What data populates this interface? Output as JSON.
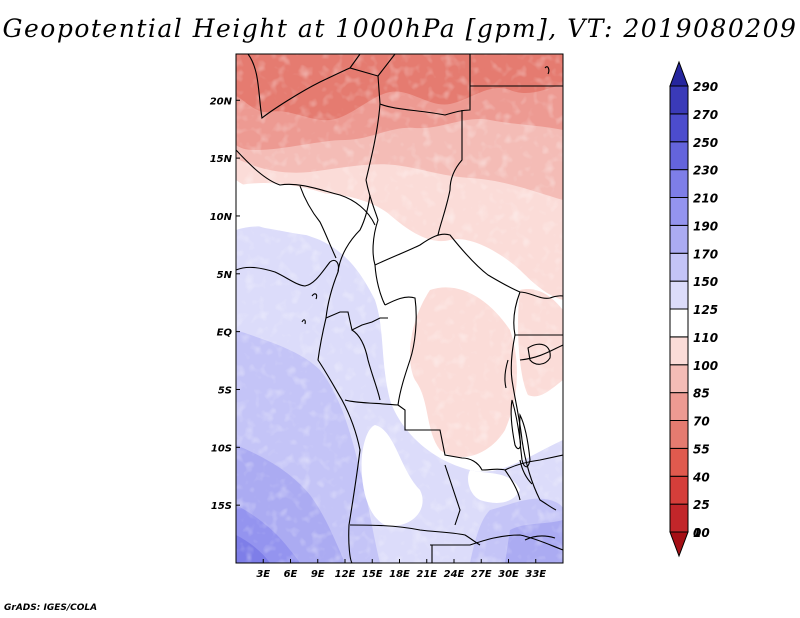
{
  "title": "Geopotential Height at 1000hPa [gpm], VT: 2019080209",
  "footer": "GrADS: IGES/COLA",
  "map": {
    "lon_range": [
      0,
      36
    ],
    "lat_range": [
      -20,
      24
    ],
    "lon_ticks": [
      {
        "value": 3,
        "label": "3E"
      },
      {
        "value": 6,
        "label": "6E"
      },
      {
        "value": 9,
        "label": "9E"
      },
      {
        "value": 12,
        "label": "12E"
      },
      {
        "value": 15,
        "label": "15E"
      },
      {
        "value": 18,
        "label": "18E"
      },
      {
        "value": 21,
        "label": "21E"
      },
      {
        "value": 24,
        "label": "24E"
      },
      {
        "value": 27,
        "label": "27E"
      },
      {
        "value": 30,
        "label": "30E"
      },
      {
        "value": 33,
        "label": "33E"
      }
    ],
    "lat_ticks": [
      {
        "value": 20,
        "label": "20N"
      },
      {
        "value": 15,
        "label": "15N"
      },
      {
        "value": 10,
        "label": "10N"
      },
      {
        "value": 5,
        "label": "5N"
      },
      {
        "value": 0,
        "label": "EQ"
      },
      {
        "value": -5,
        "label": "5S"
      },
      {
        "value": -10,
        "label": "10S"
      },
      {
        "value": -15,
        "label": "15S"
      }
    ]
  },
  "colorbar": {
    "labels": [
      "0",
      "10",
      "25",
      "40",
      "55",
      "70",
      "85",
      "100",
      "110",
      "125",
      "150",
      "170",
      "190",
      "210",
      "230",
      "250",
      "270",
      "290"
    ],
    "colors": [
      "#a50f15",
      "#c2262a",
      "#d53e3a",
      "#e05a4e",
      "#e57b70",
      "#ed9a92",
      "#f4bcb6",
      "#fbdcd8",
      "#ffffff",
      "#dcdcfa",
      "#c4c4f7",
      "#ababf2",
      "#9494ef",
      "#7e7ee8",
      "#6464dc",
      "#4c4ccd",
      "#3a3ab8",
      "#26269e"
    ]
  }
}
